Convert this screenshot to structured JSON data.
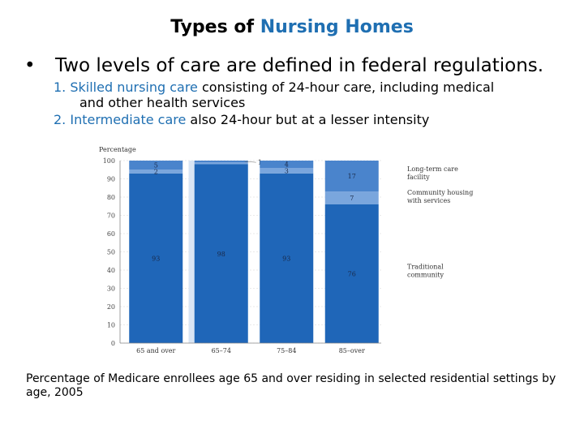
{
  "title": {
    "part1": "Types of ",
    "part2": "Nursing Homes"
  },
  "bullet": {
    "symbol": "•",
    "text": "Two levels of care are defined in federal regulations."
  },
  "items": [
    {
      "num": "1.",
      "highlight": "Skilled nursing care",
      "rest": " consisting of 24-hour care, including medical",
      "rest2": "and other health services"
    },
    {
      "num": "2.",
      "highlight": "Intermediate care",
      "rest": " also 24-hour but at a lesser intensity"
    }
  ],
  "caption": "Percentage of Medicare enrollees age 65 and over residing in selected residential settings by age, 2005",
  "colors": {
    "accent": "#1f6fb2",
    "traditional": "#1f66b8",
    "community": "#7aa6dd",
    "ltc": "#4a84cc",
    "band": "#d9e5f4"
  },
  "chart_data": {
    "type": "bar",
    "stacked": true,
    "ylabel": "Percentage",
    "ylim": [
      0,
      100
    ],
    "yticks": [
      0,
      10,
      20,
      30,
      40,
      50,
      60,
      70,
      80,
      90,
      100
    ],
    "categories": [
      "65 and over",
      "65–74",
      "75–84",
      "85–over"
    ],
    "series": [
      {
        "name": "Traditional community",
        "legend_lines": [
          "Traditional",
          "community"
        ],
        "values": [
          93,
          98,
          93,
          76
        ],
        "labels": [
          "93",
          "98",
          "93",
          "76"
        ]
      },
      {
        "name": "Community housing with services",
        "legend_lines": [
          "Community housing",
          "with services"
        ],
        "values": [
          2,
          1,
          3,
          7
        ],
        "labels": [
          "2",
          "1",
          "3",
          "7"
        ]
      },
      {
        "name": "Long-term care facility",
        "legend_lines": [
          "Long-term care",
          "facility"
        ],
        "values": [
          5,
          1,
          4,
          17
        ],
        "labels": [
          "5",
          "1",
          "4",
          "17"
        ]
      }
    ],
    "legend_position": "right",
    "grid": true
  }
}
